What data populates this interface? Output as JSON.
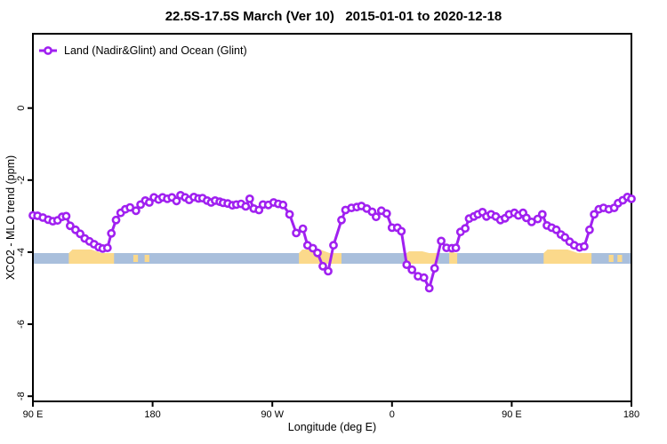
{
  "title": "22.5S-17.5S March (Ver 10)   2015-01-01 to 2020-12-18",
  "legend": {
    "label": "Land (Nadir&Glint) and Ocean (Glint)",
    "position": "top-left",
    "boxed": false
  },
  "axes": {
    "x": {
      "label": "Longitude (deg E)",
      "ticks": [
        {
          "t": 0,
          "label": "90 E"
        },
        {
          "t": 90,
          "label": "180"
        },
        {
          "t": 180,
          "label": "90 W"
        },
        {
          "t": 270,
          "label": "0"
        },
        {
          "t": 360,
          "label": "90 E"
        },
        {
          "t": 450,
          "label": "180"
        }
      ]
    },
    "y": {
      "label": "XCO2 - MLO trend (ppm)",
      "ticks": [
        {
          "v": 0,
          "label": "0"
        },
        {
          "v": -2,
          "label": "-2"
        },
        {
          "v": -4,
          "label": "-4"
        },
        {
          "v": -6,
          "label": "-6"
        },
        {
          "v": -8,
          "label": "-8"
        }
      ]
    }
  },
  "map_strip": {
    "ocean_color": "#A9BFDC",
    "land_color": "#FBD98B",
    "land_segments": [
      {
        "start": 27,
        "end": 61,
        "raise": 4
      },
      {
        "start": 75.5,
        "end": 79,
        "thin": true
      },
      {
        "start": 84,
        "end": 87.5,
        "thin": true
      },
      {
        "start": 200,
        "end": 232,
        "raise": 4
      },
      {
        "start": 281,
        "end": 304.5,
        "raise": 2
      },
      {
        "start": 313,
        "end": 319,
        "raise": 2
      },
      {
        "start": 384,
        "end": 420,
        "raise": 4
      },
      {
        "start": 433,
        "end": 436.5,
        "thin": true
      },
      {
        "start": 439.5,
        "end": 443,
        "thin": true
      }
    ]
  },
  "chart_data": {
    "type": "line",
    "title": "22.5S-17.5S March (Ver 10)   2015-01-01 to 2020-12-18",
    "xlabel": "Longitude (deg E)",
    "ylabel": "XCO2 - MLO trend (ppm)",
    "x_range_deg": [
      0,
      450
    ],
    "ylim": [
      -8.1,
      2.1
    ],
    "grid": false,
    "legend_position": "top-left",
    "marker": "open-circle",
    "series": [
      {
        "name": "Land (Nadir&Glint) and Ocean (Glint)",
        "color": "#A020F0",
        "x_deg_from_90E": [
          0,
          3.5,
          7.5,
          11.5,
          15,
          18.5,
          22,
          25,
          28,
          32,
          35.5,
          39,
          42.5,
          46,
          49.5,
          52.5,
          56,
          59,
          62.5,
          66,
          69.5,
          73,
          77.5,
          81,
          84.5,
          87.5,
          91,
          94.5,
          97.5,
          101,
          104.5,
          108,
          111,
          114.5,
          117.5,
          121,
          124.5,
          127.5,
          131,
          134,
          137,
          140.5,
          143,
          146.5,
          150,
          153,
          156.5,
          160,
          163,
          166,
          170,
          173,
          177,
          181,
          184.5,
          188,
          193,
          198,
          203,
          206.5,
          210.5,
          214,
          218,
          222,
          226,
          232,
          235,
          239.5,
          243.5,
          247,
          251,
          255,
          258,
          262,
          266,
          270,
          274,
          277,
          281,
          285,
          289.5,
          294,
          298,
          302,
          307,
          311,
          315,
          318,
          321.5,
          325,
          328,
          331.5,
          334.5,
          338,
          341,
          344.5,
          348,
          351.5,
          355,
          358,
          362,
          365,
          368.5,
          371,
          375,
          379.5,
          383,
          386.5,
          390,
          393.5,
          397,
          400,
          403.5,
          407,
          411,
          414.5,
          418.5,
          422,
          425.5,
          429,
          433,
          437,
          440,
          443.5,
          447,
          450
        ],
        "values": [
          -2.98,
          -2.99,
          -3.04,
          -3.1,
          -3.14,
          -3.12,
          -3.02,
          -3.0,
          -3.27,
          -3.38,
          -3.49,
          -3.62,
          -3.7,
          -3.78,
          -3.86,
          -3.9,
          -3.88,
          -3.48,
          -3.11,
          -2.91,
          -2.81,
          -2.76,
          -2.85,
          -2.68,
          -2.57,
          -2.62,
          -2.48,
          -2.54,
          -2.48,
          -2.52,
          -2.48,
          -2.58,
          -2.42,
          -2.48,
          -2.55,
          -2.47,
          -2.51,
          -2.5,
          -2.57,
          -2.62,
          -2.57,
          -2.6,
          -2.63,
          -2.65,
          -2.7,
          -2.68,
          -2.66,
          -2.73,
          -2.52,
          -2.79,
          -2.83,
          -2.68,
          -2.69,
          -2.62,
          -2.66,
          -2.69,
          -2.95,
          -3.47,
          -3.35,
          -3.81,
          -3.89,
          -4.02,
          -4.39,
          -4.53,
          -3.81,
          -3.11,
          -2.83,
          -2.77,
          -2.75,
          -2.72,
          -2.79,
          -2.88,
          -3.02,
          -2.85,
          -2.93,
          -3.32,
          -3.32,
          -3.42,
          -4.35,
          -4.49,
          -4.67,
          -4.71,
          -5.0,
          -4.45,
          -3.69,
          -3.88,
          -3.89,
          -3.88,
          -3.44,
          -3.34,
          -3.07,
          -3.01,
          -2.95,
          -2.89,
          -3.01,
          -2.95,
          -3.01,
          -3.11,
          -3.06,
          -2.95,
          -2.91,
          -2.98,
          -2.91,
          -3.05,
          -3.16,
          -3.08,
          -2.95,
          -3.26,
          -3.32,
          -3.38,
          -3.51,
          -3.59,
          -3.71,
          -3.81,
          -3.87,
          -3.84,
          -3.38,
          -2.95,
          -2.81,
          -2.77,
          -2.81,
          -2.77,
          -2.64,
          -2.56,
          -2.47,
          -2.52
        ]
      }
    ]
  }
}
